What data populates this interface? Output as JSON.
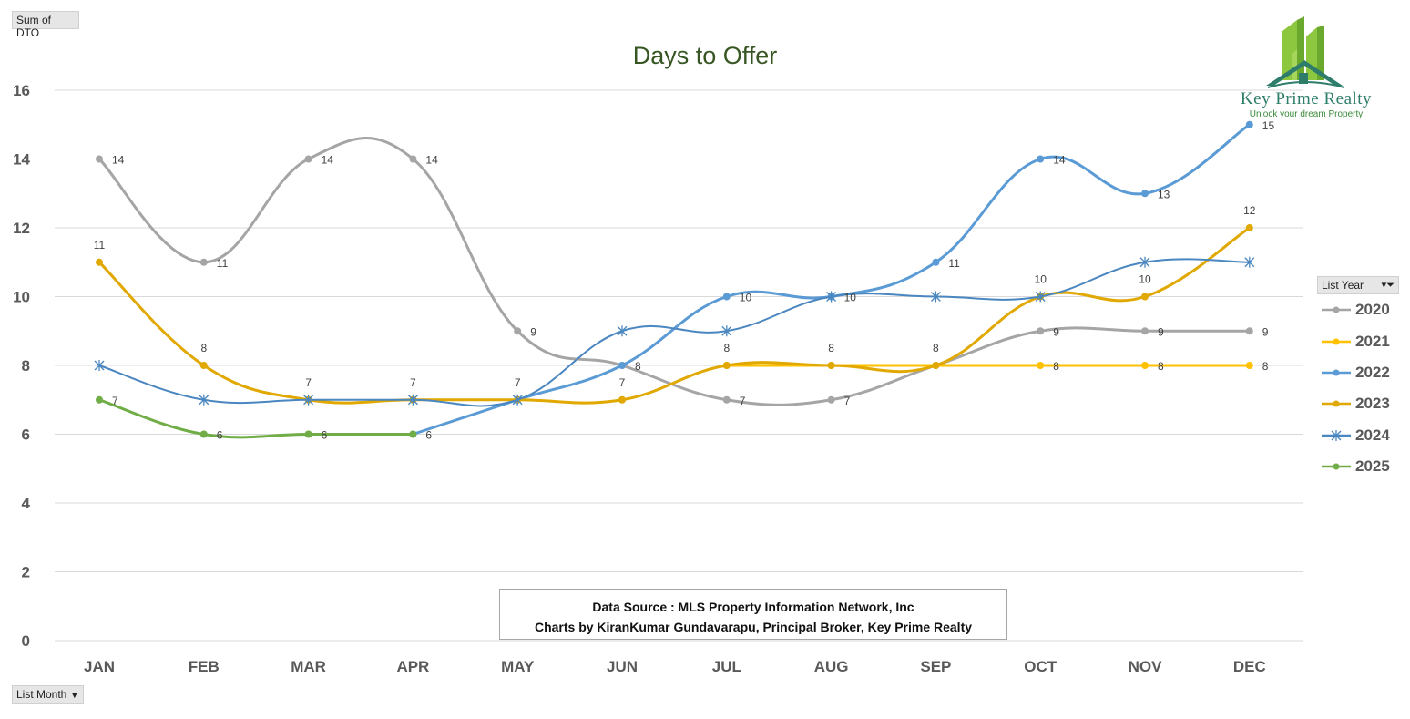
{
  "header": {
    "field_button": "Sum of DTO"
  },
  "footer": {
    "field_button": "List Month"
  },
  "logo": {
    "name": "Key Prime Realty",
    "tagline": "Unlock your dream Property"
  },
  "source": {
    "line1": "Data Source : MLS Property Information Network, Inc",
    "line2": "Charts by KiranKumar Gundavarapu, Principal Broker, Key Prime Realty"
  },
  "legend": {
    "title": "List Year"
  },
  "chart_data": {
    "type": "line",
    "title": "Days to Offer",
    "categories": [
      "JAN",
      "FEB",
      "MAR",
      "APR",
      "MAY",
      "JUN",
      "JUL",
      "AUG",
      "SEP",
      "OCT",
      "NOV",
      "DEC"
    ],
    "ylim": [
      0,
      16
    ],
    "yticks": [
      0,
      2,
      4,
      6,
      8,
      10,
      12,
      14,
      16
    ],
    "grid": true,
    "legend_position": "right",
    "series": [
      {
        "name": "2020",
        "color": "#a5a5a5",
        "marker": "circle",
        "values": [
          14,
          11,
          14,
          14,
          9,
          8,
          7,
          7,
          8,
          9,
          9,
          9
        ],
        "labels": [
          "14",
          "11",
          "14",
          "14",
          "9",
          null,
          "7",
          "7",
          null,
          "9",
          "9",
          "9"
        ]
      },
      {
        "name": "2021",
        "color": "#ffc000",
        "marker": "circle",
        "values": [
          null,
          null,
          null,
          null,
          null,
          null,
          8,
          8,
          8,
          8,
          8,
          8
        ],
        "labels": [
          null,
          null,
          null,
          null,
          null,
          null,
          null,
          null,
          null,
          "8",
          "8",
          "8"
        ]
      },
      {
        "name": "2022",
        "color": "#5b9bd5",
        "marker": "circle",
        "values": [
          null,
          null,
          null,
          6,
          7,
          8,
          10,
          10,
          11,
          14,
          13,
          15
        ],
        "labels": [
          null,
          null,
          null,
          null,
          null,
          "8",
          "10",
          "10",
          "11",
          "14",
          "13",
          "15"
        ]
      },
      {
        "name": "2023",
        "color": "#e0a800",
        "marker": "circle",
        "values": [
          11,
          8,
          7,
          7,
          7,
          7,
          8,
          8,
          8,
          10,
          10,
          12
        ],
        "labels": [
          "11",
          "8",
          "7",
          "7",
          "7",
          "7",
          "8",
          "8",
          "8",
          "10",
          "10",
          "12"
        ]
      },
      {
        "name": "2024",
        "color": "#4a86c0",
        "marker": "star",
        "values": [
          8,
          7,
          7,
          7,
          7,
          9,
          9,
          10,
          10,
          10,
          11,
          11
        ],
        "labels": [
          null,
          null,
          null,
          null,
          null,
          null,
          null,
          null,
          null,
          null,
          null,
          null
        ]
      },
      {
        "name": "2025",
        "color": "#70ad47",
        "marker": "circle",
        "values": [
          7,
          6,
          6,
          6,
          null,
          null,
          null,
          null,
          null,
          null,
          null,
          null
        ],
        "labels": [
          "7",
          "6",
          "6",
          "6",
          null,
          null,
          null,
          null,
          null,
          null,
          null,
          null
        ]
      }
    ]
  }
}
